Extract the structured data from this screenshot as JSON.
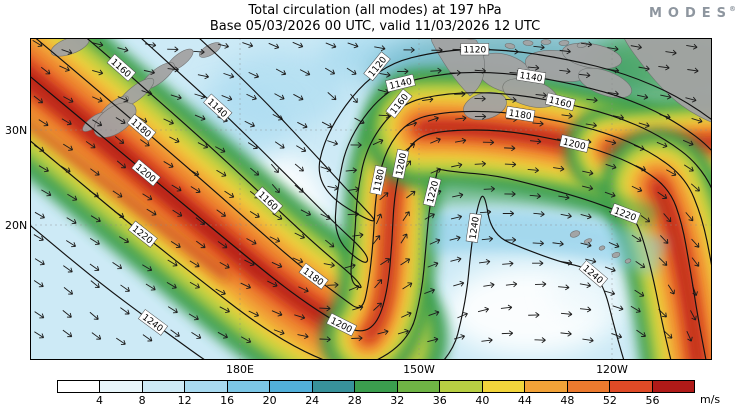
{
  "header": {
    "title": "Total circulation (all modes) at 197 hPa",
    "subtitle": "Base 05/03/2026 00 UTC, valid 11/03/2026 12 UTC",
    "logo": "MODES",
    "logo_mark": "®"
  },
  "chart_data": {
    "type": "heatmap",
    "title": "Total circulation (all modes) at 197 hPa",
    "subtitle": "Base 05/03/2026 00 UTC, valid 11/03/2026 12 UTC",
    "field": "total circulation wind speed with direction arrows and circulation contours",
    "unit": "m/s",
    "x_ticks": [
      "180E",
      "150W",
      "120W"
    ],
    "y_ticks": [
      "30N",
      "20N"
    ],
    "colorbar": {
      "ticks": [
        4,
        8,
        12,
        16,
        20,
        24,
        28,
        32,
        36,
        40,
        44,
        48,
        52,
        56
      ],
      "colors": [
        "#ffffff",
        "#e8f6fb",
        "#cdeaf6",
        "#a8daf0",
        "#7cc7e6",
        "#52b0da",
        "#38929b",
        "#3b9e4e",
        "#6fb445",
        "#b8cf43",
        "#f2d53c",
        "#f2a238",
        "#ec7a2e",
        "#df4a26",
        "#b01a18"
      ]
    },
    "contours": {
      "values": [
        1120,
        1140,
        1160,
        1180,
        1200,
        1220,
        1240
      ],
      "interval": 20
    },
    "vectors": "wind direction arrows",
    "features": {
      "high_speed_bands": [
        "broad jet from northwest edge sloping southeast to bottom centre",
        "narrow ridge turning north then east across centre",
        "eastern band descending along right edge to bottom-right corner"
      ],
      "low_speed_regions": [
        "central trough interior",
        "south-eastern interior"
      ]
    }
  }
}
